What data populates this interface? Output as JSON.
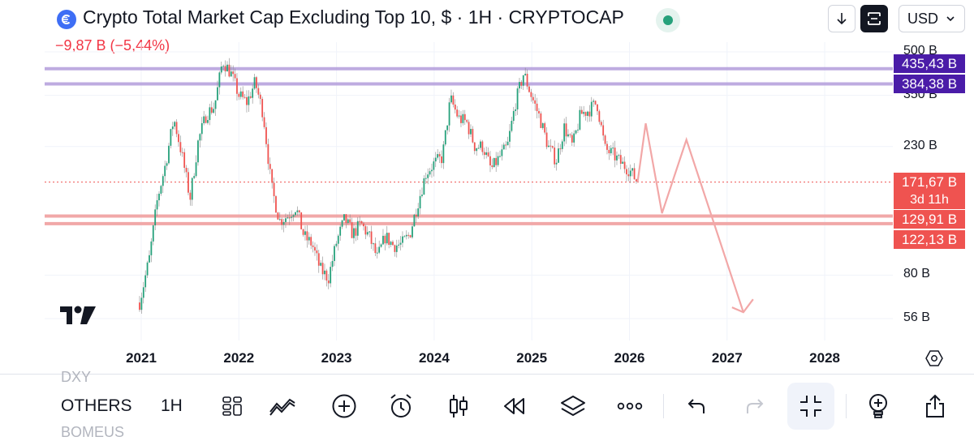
{
  "header": {
    "symbol_title": "Crypto Total Market Cap Excluding Top 10, $ · 1H · CRYPTOCAP",
    "change": "−9,87 B (−5,44%)",
    "currency": "USD",
    "symbol_icon": "coin-logo-icon",
    "live_status_color": "#26a17b"
  },
  "price_axis": {
    "labels": [
      "500 B",
      "350 B",
      "230 B",
      "80 B",
      "56 B"
    ],
    "tags": {
      "resistance_high": "435,43 B",
      "resistance_low": "384,38 B",
      "last_price": "171,67 B",
      "countdown": "3d 11h",
      "support_high": "129,91 B",
      "support_low": "122,13 B"
    }
  },
  "time_axis": {
    "labels": [
      "2021",
      "2022",
      "2023",
      "2024",
      "2025",
      "2026",
      "2027",
      "2028"
    ]
  },
  "chart_data": {
    "type": "candlestick",
    "y_scale": "log",
    "ylim": [
      48,
      520
    ],
    "x_range": [
      "2020-11",
      "2028-06"
    ],
    "horizontal_lines": [
      {
        "value": 435.43,
        "color": "#b39ddb"
      },
      {
        "value": 384.38,
        "color": "#b39ddb"
      },
      {
        "value": 129.91,
        "color": "#ef9a9a"
      },
      {
        "value": 122.13,
        "color": "#ef9a9a"
      },
      {
        "value": 171.67,
        "color": "#ef5350",
        "style": "dotted"
      }
    ],
    "projection": [
      [
        "2026-02",
        171.67
      ],
      [
        "2026-03",
        278
      ],
      [
        "2026-05",
        133
      ],
      [
        "2026-08",
        243
      ],
      [
        "2027-03",
        59
      ]
    ],
    "series_trend": [
      [
        "2020-12",
        50
      ],
      [
        "2021-01",
        68
      ],
      [
        "2021-02",
        92
      ],
      [
        "2021-03",
        150
      ],
      [
        "2021-04",
        200
      ],
      [
        "2021-05",
        290
      ],
      [
        "2021-06",
        215
      ],
      [
        "2021-07",
        150
      ],
      [
        "2021-08",
        240
      ],
      [
        "2021-09",
        300
      ],
      [
        "2021-10",
        320
      ],
      [
        "2021-11",
        465
      ],
      [
        "2021-12",
        420
      ],
      [
        "2022-01",
        350
      ],
      [
        "2022-02",
        330
      ],
      [
        "2022-03",
        390
      ],
      [
        "2022-04",
        300
      ],
      [
        "2022-05",
        165
      ],
      [
        "2022-06",
        125
      ],
      [
        "2022-07",
        130
      ],
      [
        "2022-08",
        140
      ],
      [
        "2022-09",
        110
      ],
      [
        "2022-10",
        103
      ],
      [
        "2022-11",
        84
      ],
      [
        "2022-12",
        78
      ],
      [
        "2023-01",
        105
      ],
      [
        "2023-02",
        127
      ],
      [
        "2023-03",
        112
      ],
      [
        "2023-04",
        122
      ],
      [
        "2023-05",
        110
      ],
      [
        "2023-06",
        92
      ],
      [
        "2023-07",
        110
      ],
      [
        "2023-08",
        102
      ],
      [
        "2023-09",
        103
      ],
      [
        "2023-10",
        112
      ],
      [
        "2023-11",
        145
      ],
      [
        "2023-12",
        185
      ],
      [
        "2024-01",
        200
      ],
      [
        "2024-02",
        210
      ],
      [
        "2024-03",
        340
      ],
      [
        "2024-04",
        290
      ],
      [
        "2024-05",
        280
      ],
      [
        "2024-06",
        230
      ],
      [
        "2024-07",
        230
      ],
      [
        "2024-08",
        190
      ],
      [
        "2024-09",
        210
      ],
      [
        "2024-10",
        230
      ],
      [
        "2024-11",
        330
      ],
      [
        "2024-12",
        420
      ],
      [
        "2025-01",
        345
      ],
      [
        "2025-02",
        290
      ],
      [
        "2025-03",
        230
      ],
      [
        "2025-04",
        205
      ],
      [
        "2025-05",
        270
      ],
      [
        "2025-06",
        230
      ],
      [
        "2025-07",
        300
      ],
      [
        "2025-08",
        310
      ],
      [
        "2025-09",
        330
      ],
      [
        "2025-10",
        225
      ],
      [
        "2025-11",
        215
      ],
      [
        "2025-12",
        200
      ],
      [
        "2026-01",
        190
      ],
      [
        "2026-02",
        171.67
      ]
    ],
    "up_color": "#26a17b",
    "down_color": "#ef5350"
  },
  "bottom_bar": {
    "symbol": "OTHERS",
    "interval": "1H",
    "ghost_above": "DXY",
    "ghost_below": "BOMEUS"
  }
}
